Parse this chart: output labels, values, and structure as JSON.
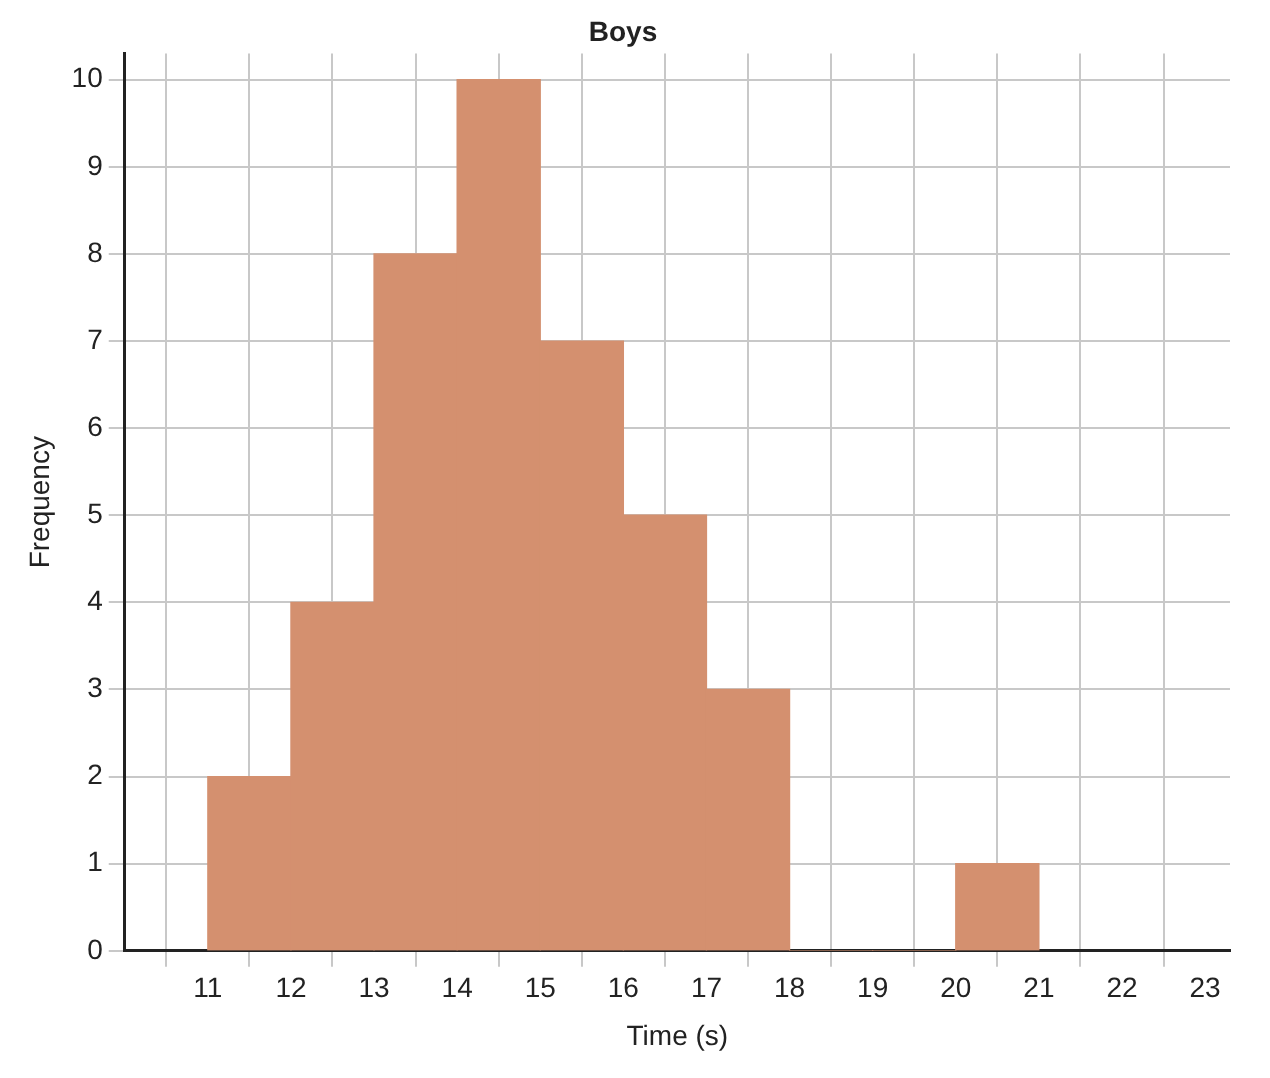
{
  "chart_data": {
    "type": "histogram",
    "title": "Boys",
    "xlabel": "Time (s)",
    "ylabel": "Frequency",
    "bins": [
      11,
      12,
      13,
      14,
      15,
      16,
      17,
      18,
      19,
      20,
      21
    ],
    "values": [
      2,
      4,
      8,
      10,
      7,
      5,
      3,
      0,
      0,
      1
    ],
    "color": "#d4906f",
    "xlim": [
      10,
      23.3
    ],
    "xticks": [
      11,
      12,
      13,
      14,
      15,
      16,
      17,
      18,
      19,
      20,
      21,
      22,
      23
    ],
    "ylim": [
      0,
      10.3
    ],
    "yticks": [
      0,
      1,
      2,
      3,
      4,
      5,
      6,
      7,
      8,
      9,
      10
    ],
    "grid": true
  }
}
